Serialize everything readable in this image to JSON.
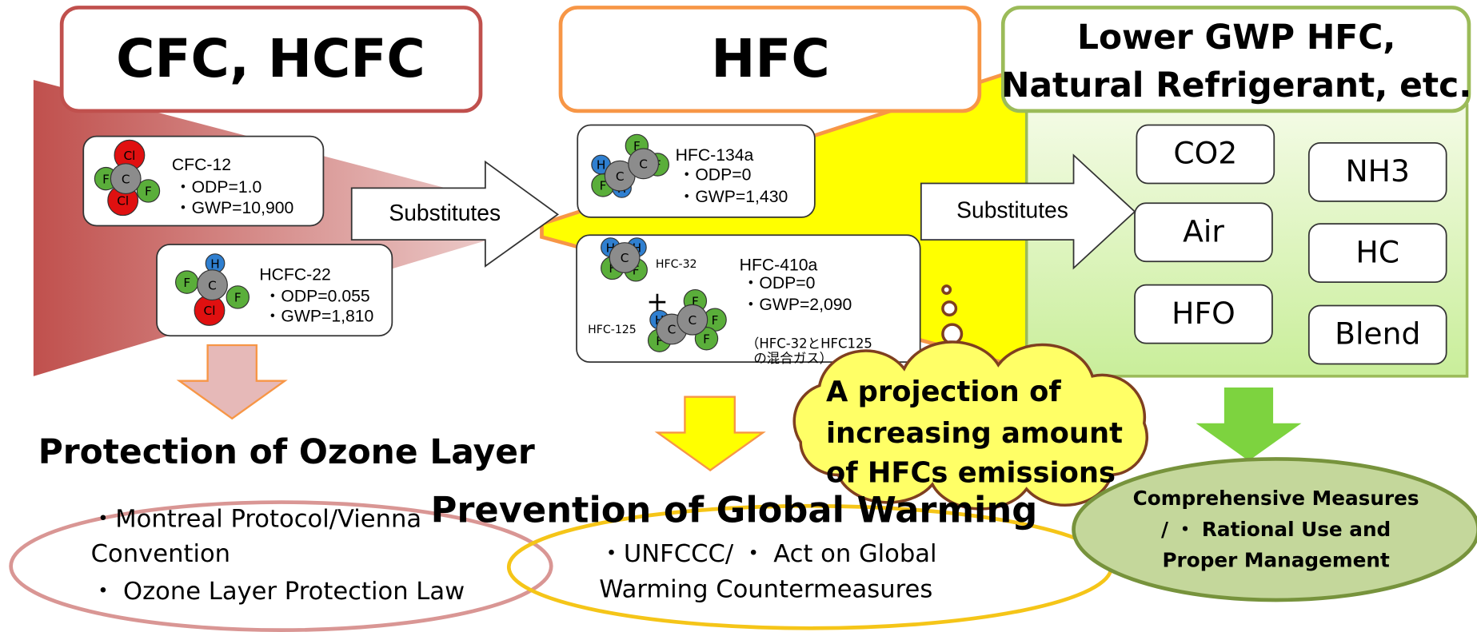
{
  "columns": [
    {
      "title": [
        "CFC,  HCFC"
      ],
      "refrigerants": [
        {
          "name": "CFC-12",
          "lines": [
            "・ODP=1.0",
            "・GWP=10,900"
          ]
        },
        {
          "name": "HCFC-22",
          "lines": [
            "・ODP=0.055",
            "・GWP=1,810"
          ]
        }
      ],
      "goal": "Protection of Ozone Layer",
      "measures": [
        "・Montreal Protocol/Vienna",
        "Convention",
        "・ Ozone Layer Protection Law"
      ]
    },
    {
      "title": [
        "HFC"
      ],
      "refrigerants": [
        {
          "name": "HFC-134a",
          "lines": [
            "・ODP=0",
            "・GWP=1,430"
          ]
        },
        {
          "name": "HFC-410a",
          "lines": [
            "・ODP=0",
            "・GWP=2,090"
          ],
          "components": [
            "HFC-32",
            "+",
            "HFC-125"
          ],
          "note": [
            "（HFC-32とHFC125",
            "の混合ガス）"
          ]
        }
      ],
      "goal": "Prevention of Global Warming",
      "measures": [
        "・UNFCCC/ ・ Act on Global",
        "Warming Countermeasures"
      ]
    },
    {
      "title": [
        "Lower GWP HFC,",
        "Natural Refrigerant, etc."
      ],
      "alternatives": [
        "CO2",
        "NH3",
        "Air",
        "HC",
        "HFO",
        "Blend"
      ],
      "measures": [
        "Comprehensive Measures",
        "/ ・ Rational Use and",
        "Proper Management"
      ]
    }
  ],
  "arrows": [
    "Substitutes",
    "Substitutes"
  ],
  "callout": [
    "A projection of",
    "increasing amount",
    "of HFCs emissions"
  ],
  "atom_labels": [
    "C",
    "F",
    "H",
    "Cl"
  ]
}
